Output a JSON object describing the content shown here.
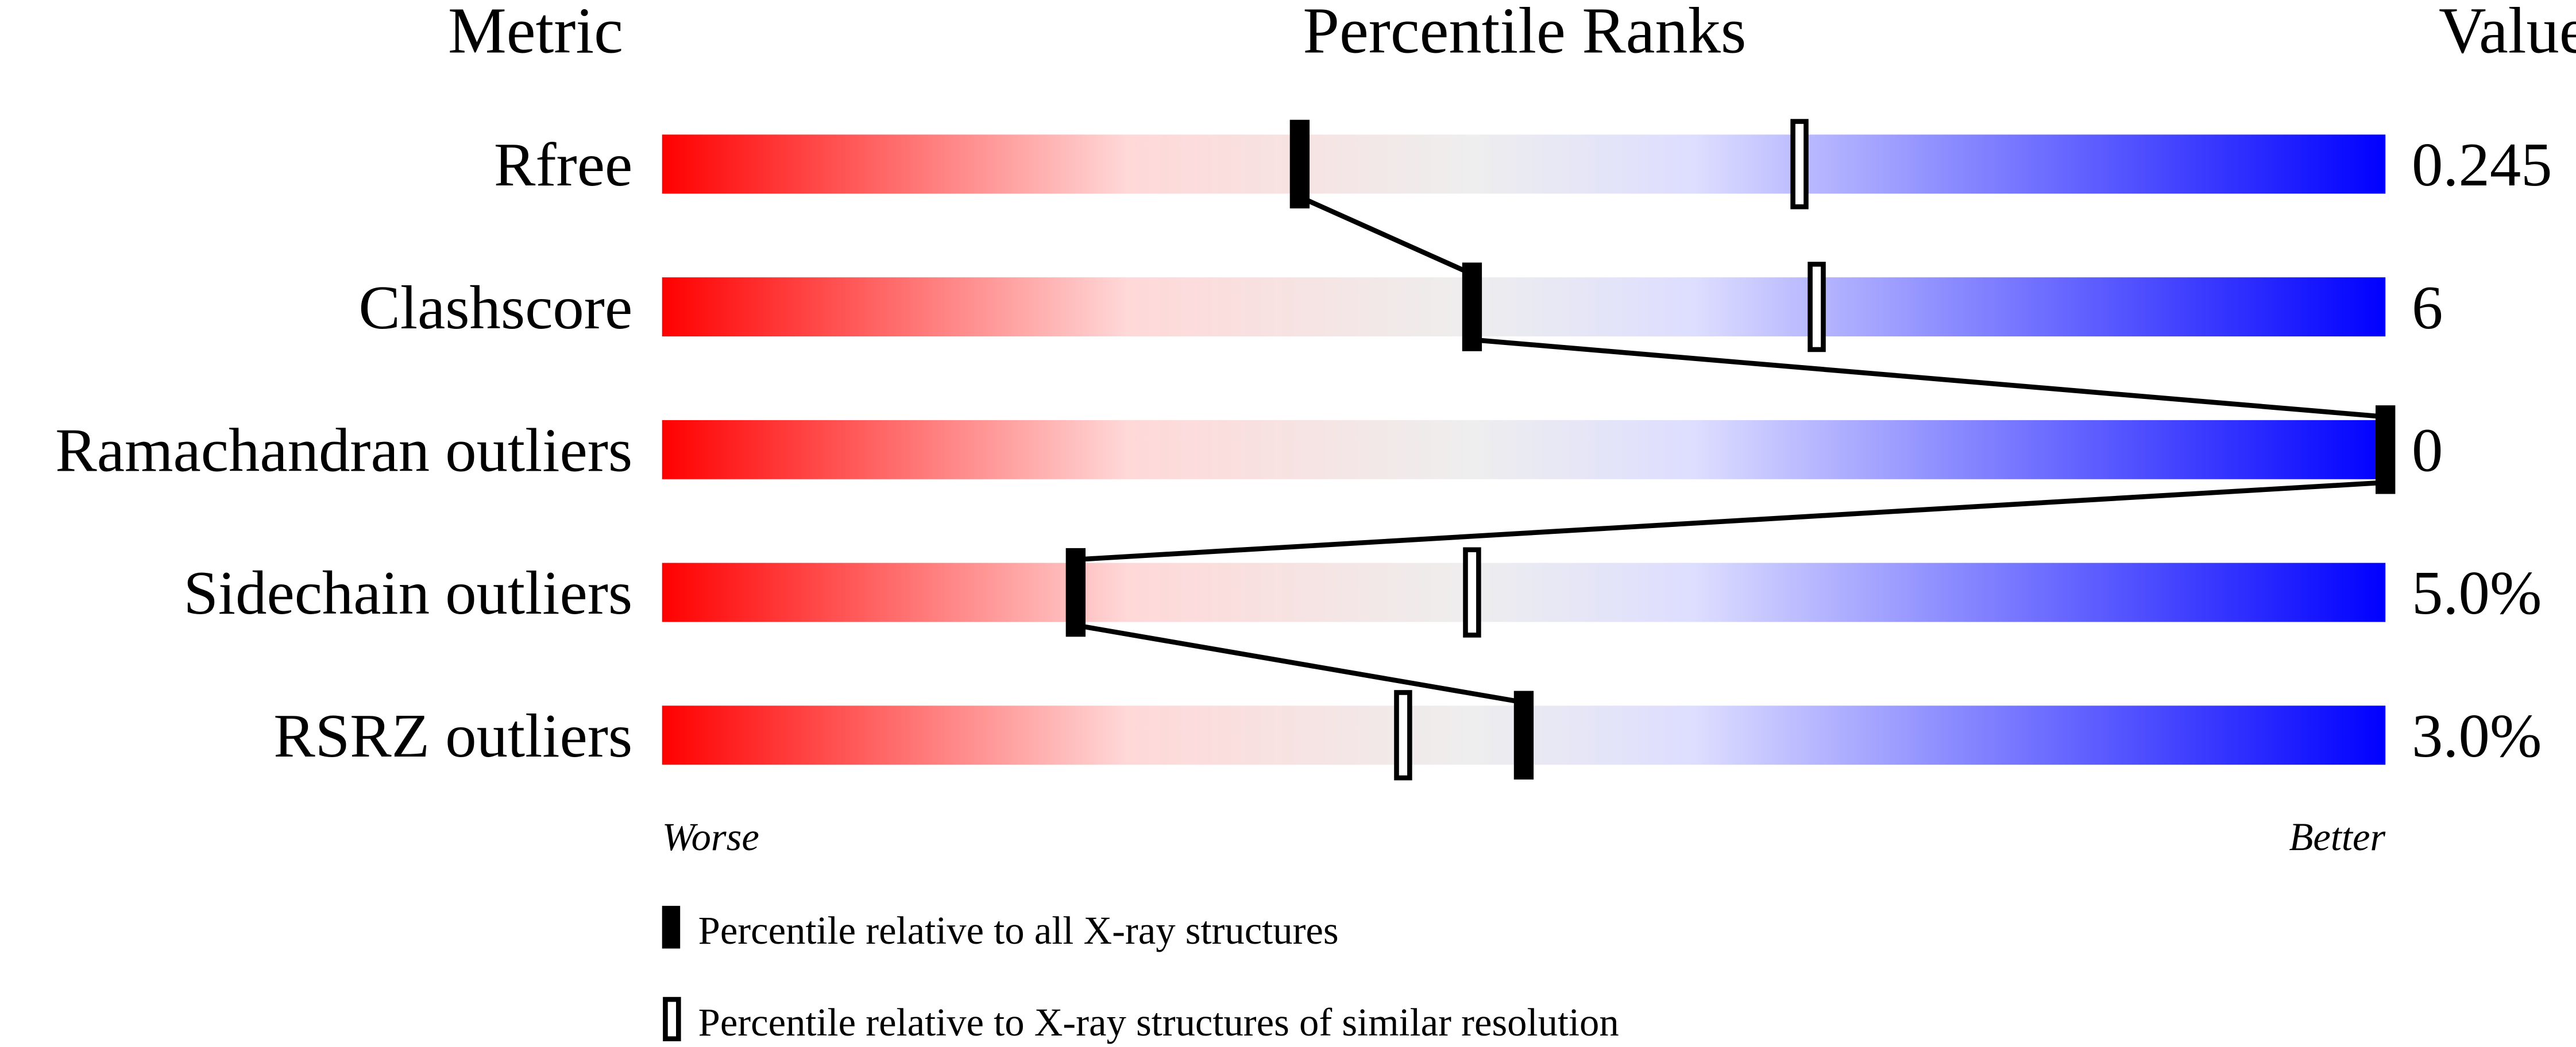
{
  "chart_data": {
    "type": "percentile-bar",
    "headers": {
      "metric": "Metric",
      "ranks": "Percentile Ranks",
      "value": "Value"
    },
    "xlim": [
      0,
      100
    ],
    "axis_labels": {
      "left": "Worse",
      "right": "Better"
    },
    "gradient_colors": [
      "#ff0000",
      "#ffdddd",
      "#eeeeee",
      "#ddddff",
      "#0000ff"
    ],
    "rows": [
      {
        "metric": "Rfree",
        "value": "0.245",
        "percentile_all": 37,
        "percentile_similar": 66
      },
      {
        "metric": "Clashscore",
        "value": "6",
        "percentile_all": 47,
        "percentile_similar": 67
      },
      {
        "metric": "Ramachandran outliers",
        "value": "0",
        "percentile_all": 100,
        "percentile_similar": null
      },
      {
        "metric": "Sidechain outliers",
        "value": "5.0%",
        "percentile_all": 24,
        "percentile_similar": 47
      },
      {
        "metric": "RSRZ outliers",
        "value": "3.0%",
        "percentile_all": 50,
        "percentile_similar": 43
      }
    ],
    "legend": [
      {
        "marker": "filled",
        "label": "Percentile relative to all X-ray structures"
      },
      {
        "marker": "open",
        "label": "Percentile relative to X-ray structures of similar resolution"
      }
    ]
  }
}
